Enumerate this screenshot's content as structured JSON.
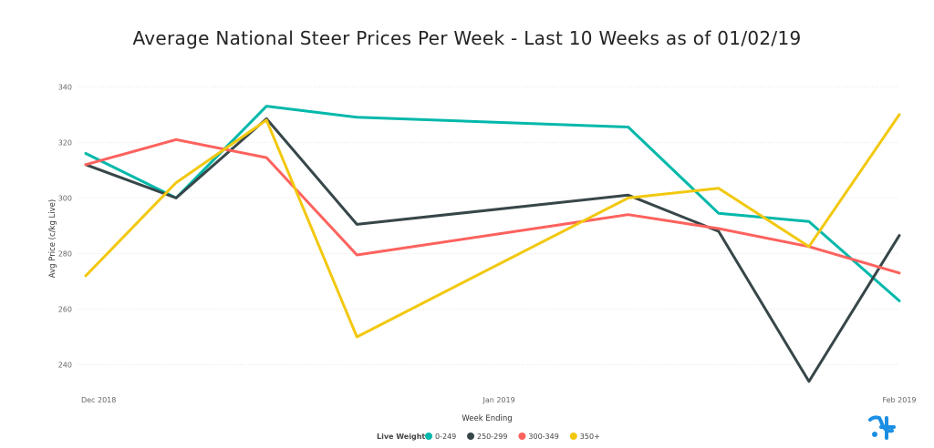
{
  "chart_data": {
    "type": "line",
    "title": "Average National Steer Prices Per Week - Last 10 Weeks as of 01/02/19",
    "xlabel": "Week Ending",
    "ylabel": "Avg Price (c/kg Live)",
    "x_tick_labels": [
      "Dec 2018",
      "Jan 2019",
      "Feb 2019"
    ],
    "y_ticks": [
      240,
      260,
      280,
      300,
      320,
      340
    ],
    "ylim": [
      232,
      345
    ],
    "grid": true,
    "legend": {
      "title": "Live Weight",
      "position": "bottom-center"
    },
    "x": [
      "2018-11-30",
      "2018-12-07",
      "2018-12-14",
      "2018-12-21",
      "2019-01-11",
      "2019-01-18",
      "2019-01-25",
      "2019-02-01"
    ],
    "series": [
      {
        "name": "0-249",
        "color": "#01B8AA",
        "values": [
          316,
          300,
          333,
          329,
          325.5,
          294.5,
          291.5,
          263
        ]
      },
      {
        "name": "250-299",
        "color": "#374649",
        "values": [
          312,
          300,
          328.5,
          290.5,
          301,
          288,
          234,
          286.5
        ]
      },
      {
        "name": "300-349",
        "color": "#FD625E",
        "values": [
          312,
          321,
          314.5,
          279.5,
          294,
          289,
          282.5,
          273
        ]
      },
      {
        "name": "350+",
        "color": "#F2C80F",
        "values": [
          272,
          305.5,
          328,
          250,
          300,
          303.5,
          282.5,
          330
        ]
      }
    ]
  }
}
